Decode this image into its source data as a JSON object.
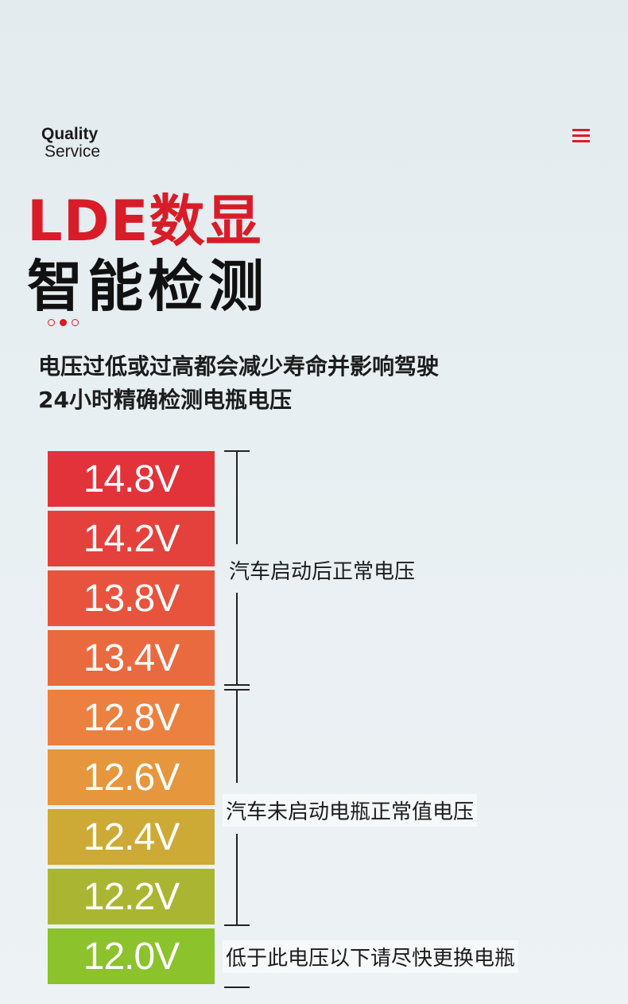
{
  "header": {
    "brand_line1": "Quality",
    "brand_line2": "Service",
    "menu_icon": "hamburger-menu-icon",
    "accent_color": "#d81c28"
  },
  "hero": {
    "title_line1": "LDE数显",
    "title_line2": "智能检测",
    "desc_line1": "电压过低或过高都会减少寿命并影响驾驶",
    "desc_line2": "24小时精确检测电瓶电压"
  },
  "voltage_scale": {
    "levels": [
      {
        "label": "14.8V",
        "color": "#e2333a"
      },
      {
        "label": "14.2V",
        "color": "#e5413c"
      },
      {
        "label": "13.8V",
        "color": "#e8533d"
      },
      {
        "label": "13.4V",
        "color": "#ea6a3f"
      },
      {
        "label": "12.8V",
        "color": "#ec8040"
      },
      {
        "label": "12.6V",
        "color": "#e6963c"
      },
      {
        "label": "12.4V",
        "color": "#cdaa36"
      },
      {
        "label": "12.2V",
        "color": "#aab632"
      },
      {
        "label": "12.0V",
        "color": "#8cc22c"
      }
    ],
    "range_labels": {
      "running": "汽车启动后正常电压",
      "not_running": "汽车未启动电瓶正常值电压",
      "low": "低于此电压以下请尽快更换电瓶"
    }
  }
}
